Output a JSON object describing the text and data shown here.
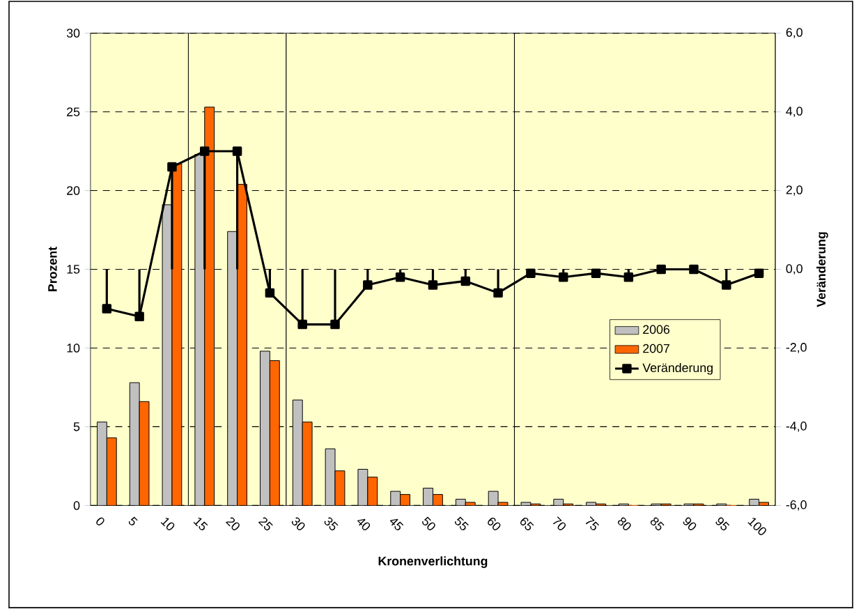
{
  "chart_data": {
    "type": "bar",
    "xlabel": "Kronenverlichtung",
    "ylabel": "Prozent",
    "y2label": "Veränderung",
    "categories": [
      "0",
      "5",
      "10",
      "15",
      "20",
      "25",
      "30",
      "35",
      "40",
      "45",
      "50",
      "55",
      "60",
      "65",
      "70",
      "75",
      "80",
      "85",
      "90",
      "95",
      "100"
    ],
    "series": [
      {
        "name": "2006",
        "color": "#c0c0c0",
        "values": [
          5.3,
          7.8,
          19.1,
          22.3,
          17.4,
          9.8,
          6.7,
          3.6,
          2.3,
          0.9,
          1.1,
          0.4,
          0.9,
          0.2,
          0.4,
          0.2,
          0.1,
          0.1,
          0.1,
          0.1,
          0.4
        ]
      },
      {
        "name": "2007",
        "color": "#ff6600",
        "values": [
          4.3,
          6.6,
          21.7,
          25.3,
          20.4,
          9.2,
          5.3,
          2.2,
          1.8,
          0.7,
          0.7,
          0.2,
          0.2,
          0.1,
          0.1,
          0.1,
          0.0,
          0.1,
          0.1,
          0.0,
          0.2
        ]
      },
      {
        "name": "Veränderung",
        "type": "line",
        "axis": "y2",
        "color": "#000000",
        "marker": "square",
        "line_style": "solid",
        "values": [
          -1.0,
          -1.2,
          2.6,
          3.0,
          3.0,
          -0.6,
          -1.4,
          -1.4,
          -0.4,
          -0.2,
          -0.4,
          -0.3,
          -0.6,
          -0.1,
          -0.2,
          -0.1,
          -0.2,
          0.0,
          0.0,
          -0.4,
          -0.1
        ],
        "errors": [
          [
            -1.0,
            0
          ],
          [
            -1.2,
            0
          ],
          [
            0,
            2.6
          ],
          [
            0,
            3.0
          ],
          [
            0,
            3.0
          ],
          [
            -0.6,
            0
          ],
          [
            -1.4,
            0
          ],
          [
            -1.4,
            0
          ],
          [
            -0.4,
            0
          ],
          [
            -0.2,
            0
          ],
          [
            -0.4,
            0
          ],
          [
            -0.3,
            0
          ],
          [
            -0.6,
            0
          ],
          [
            -0.1,
            0
          ],
          [
            -0.2,
            0
          ],
          [
            -0.1,
            0
          ],
          [
            -0.2,
            0
          ],
          null,
          null,
          [
            -0.4,
            0
          ],
          [
            -0.1,
            0
          ]
        ]
      }
    ],
    "ylim": [
      0,
      30
    ],
    "yticks": [
      0,
      5,
      10,
      15,
      20,
      25,
      30
    ],
    "y2lim": [
      -6,
      6
    ],
    "y2ticks": [
      {
        "value": -6,
        "label": "-6,0"
      },
      {
        "value": -4,
        "label": "-4,0"
      },
      {
        "value": -2,
        "label": "-2,0"
      },
      {
        "value": 0,
        "label": "0,0"
      },
      {
        "value": 2,
        "label": "2,0"
      },
      {
        "value": 4,
        "label": "4,0"
      },
      {
        "value": 6,
        "label": "6,0"
      }
    ],
    "grid": "y",
    "legend": "right"
  }
}
